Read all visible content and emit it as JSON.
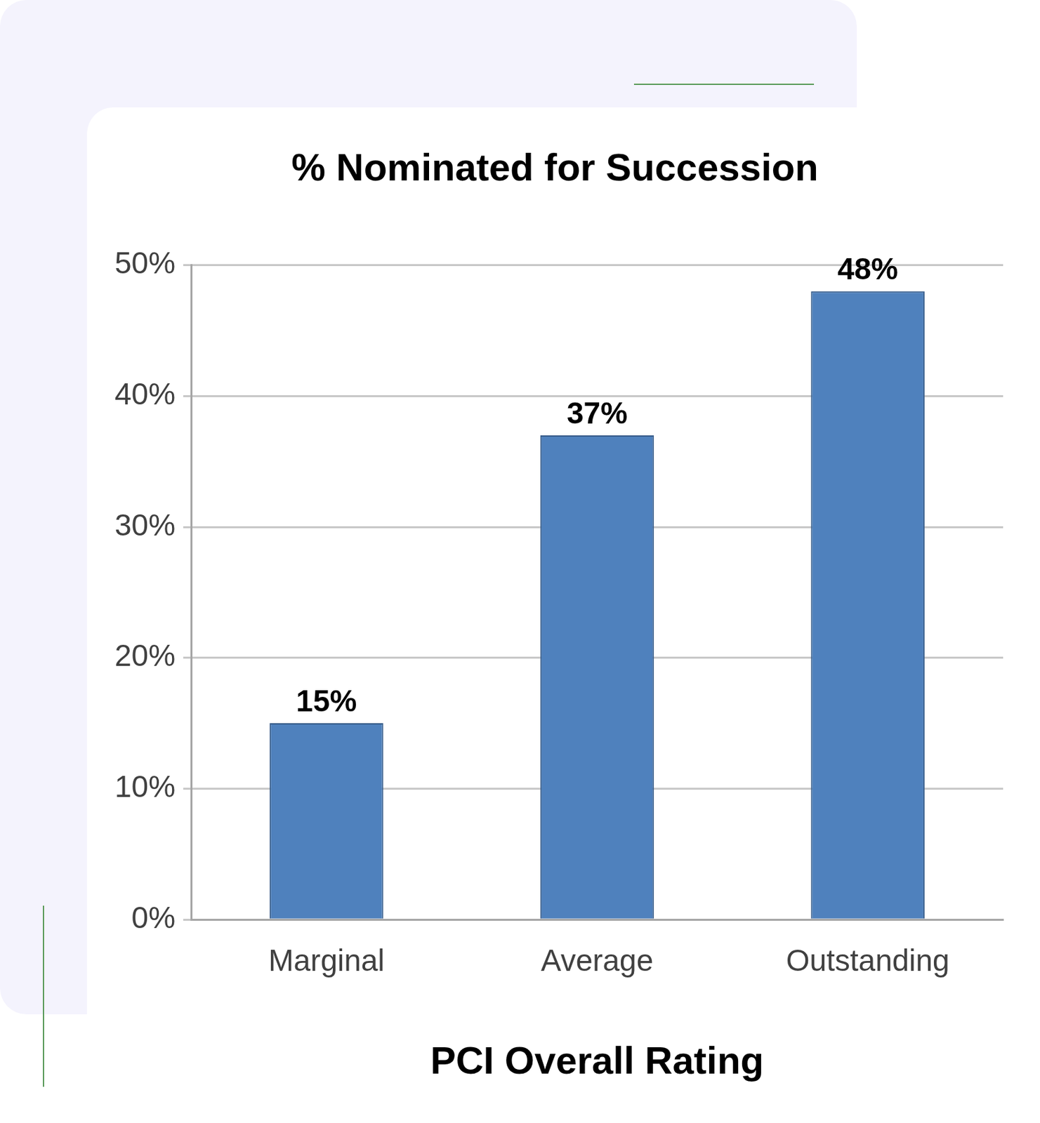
{
  "chart_data": {
    "type": "bar",
    "title": "% Nominated for Succession",
    "x_label": "PCI Overall Rating",
    "categories": [
      "Marginal",
      "Average",
      "Outstanding"
    ],
    "values": [
      15,
      37,
      48
    ],
    "value_labels": [
      "15%",
      "37%",
      "48%"
    ],
    "color": "#4f81bd",
    "ylim": [
      0,
      50
    ],
    "yticks": [
      {
        "value": 0,
        "label": "0%"
      },
      {
        "value": 10,
        "label": "10%"
      },
      {
        "value": 20,
        "label": "20%"
      },
      {
        "value": 30,
        "label": "30%"
      },
      {
        "value": 40,
        "label": "40%"
      },
      {
        "value": 50,
        "label": "50%"
      }
    ],
    "grid": true,
    "data_labels": true
  }
}
